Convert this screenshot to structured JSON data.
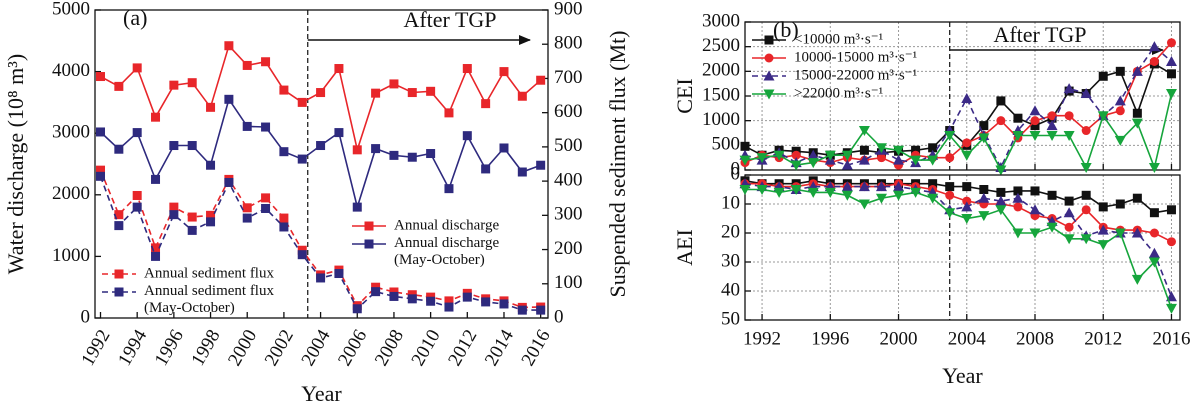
{
  "chart_data": [
    {
      "type": "line",
      "title": "(a)",
      "annotation": "After TGP",
      "divider_x": 2003.3,
      "xlabel": "Year",
      "ylabel": "Water discharge (10⁸ m³)",
      "y2label": "Suspended sediment flux (Mt)",
      "x": [
        1992,
        1993,
        1994,
        1995,
        1996,
        1997,
        1998,
        1999,
        2000,
        2001,
        2002,
        2003,
        2004,
        2005,
        2006,
        2007,
        2008,
        2009,
        2010,
        2011,
        2012,
        2013,
        2014,
        2015,
        2016
      ],
      "xlim": [
        1991.7,
        2016.4
      ],
      "xticks": [
        1992,
        1994,
        1996,
        1998,
        2000,
        2002,
        2004,
        2006,
        2008,
        2010,
        2012,
        2014,
        2016
      ],
      "ylim": [
        0,
        5000
      ],
      "yticks": [
        0,
        1000,
        2000,
        3000,
        4000,
        5000
      ],
      "y2lim": [
        0,
        900
      ],
      "y2ticks": [
        0,
        100,
        200,
        300,
        400,
        500,
        600,
        700,
        800,
        900
      ],
      "grid": false,
      "series": [
        {
          "name": "Annual discharge",
          "color": "#e8262a",
          "marker": "square",
          "dash": "solid",
          "legend_loc": "center right",
          "values": [
            3920,
            3760,
            4060,
            3260,
            3780,
            3820,
            3420,
            4420,
            4100,
            4160,
            3700,
            3500,
            3660,
            4050,
            2730,
            3650,
            3800,
            3660,
            3680,
            3330,
            4050,
            3480,
            4000,
            3600,
            3860
          ]
        },
        {
          "name": "Annual discharge (May-October)",
          "color": "#2e2a7e",
          "marker": "square",
          "dash": "solid",
          "legend_loc": "center right",
          "values": [
            3020,
            2740,
            3010,
            2250,
            2800,
            2800,
            2480,
            3550,
            3110,
            3100,
            2700,
            2580,
            2800,
            3010,
            1800,
            2750,
            2640,
            2610,
            2670,
            2100,
            2960,
            2420,
            2760,
            2370,
            2480
          ]
        },
        {
          "name": "Annual sediment flux",
          "color": "#e8262a",
          "marker": "square",
          "dash": "dashed",
          "axis": "y2",
          "legend_loc": "lower left",
          "values": [
            432,
            302,
            358,
            205,
            324,
            295,
            300,
            405,
            322,
            351,
            292,
            198,
            126,
            140,
            36,
            90,
            76,
            68,
            61,
            50,
            72,
            56,
            50,
            31,
            32
          ]
        },
        {
          "name": "Annual sediment flux (May-October)",
          "color": "#2e2a7e",
          "marker": "square",
          "dash": "dashed",
          "axis": "y2",
          "legend_loc": "lower left",
          "values": [
            414,
            270,
            324,
            180,
            302,
            256,
            281,
            396,
            292,
            320,
            266,
            185,
            117,
            130,
            27,
            77,
            63,
            56,
            49,
            32,
            61,
            47,
            41,
            23,
            23
          ]
        }
      ]
    },
    {
      "type": "line",
      "title": "(b)",
      "annotation": "After TGP",
      "divider_x": 2003,
      "ylabel": "CEI",
      "x": [
        1991,
        1992,
        1993,
        1994,
        1995,
        1996,
        1997,
        1998,
        1999,
        2000,
        2001,
        2002,
        2003,
        2004,
        2005,
        2006,
        2007,
        2008,
        2009,
        2010,
        2011,
        2012,
        2013,
        2014,
        2015,
        2016
      ],
      "xlim": [
        1991,
        2016.5
      ],
      "xticks": [
        1992,
        1996,
        2000,
        2004,
        2008,
        2012,
        2016
      ],
      "ylim": [
        0,
        3000
      ],
      "yticks": [
        0,
        500,
        1000,
        1500,
        2000,
        2500,
        3000
      ],
      "grid": true,
      "series": [
        {
          "name": "<10000 m³·s⁻¹",
          "color": "#111111",
          "marker": "square",
          "dash": "solid",
          "legend_loc": "upper left",
          "values": [
            480,
            300,
            400,
            380,
            350,
            300,
            350,
            400,
            350,
            380,
            400,
            450,
            800,
            500,
            900,
            1400,
            1050,
            900,
            1050,
            1600,
            1550,
            1900,
            2000,
            1150,
            2150,
            1950
          ]
        },
        {
          "name": "10000-15000 m³·s⁻¹",
          "color": "#e8262a",
          "marker": "circle",
          "dash": "solid",
          "legend_loc": "upper left",
          "values": [
            150,
            300,
            250,
            300,
            200,
            150,
            250,
            200,
            250,
            100,
            300,
            250,
            250,
            550,
            700,
            1000,
            650,
            1000,
            1100,
            1100,
            800,
            1100,
            1200,
            2000,
            2200,
            2580
          ]
        },
        {
          "name": "15000-22000 m³·s⁻¹",
          "color": "#3b2a86",
          "marker": "triangle-up",
          "dash": "dashed",
          "legend_loc": "upper left",
          "values": [
            300,
            200,
            350,
            150,
            300,
            200,
            100,
            200,
            400,
            200,
            150,
            300,
            800,
            1450,
            700,
            50,
            800,
            1200,
            900,
            1650,
            1550,
            1100,
            1400,
            2000,
            2500,
            2200
          ]
        },
        {
          "name": ">22000 m³·s⁻¹",
          "color": "#16a53c",
          "marker": "triangle-down",
          "dash": "solid",
          "legend_loc": "upper left",
          "values": [
            200,
            250,
            300,
            100,
            150,
            300,
            300,
            800,
            450,
            400,
            200,
            200,
            700,
            300,
            650,
            0,
            700,
            700,
            700,
            700,
            50,
            1100,
            600,
            950,
            50,
            1550
          ]
        }
      ]
    },
    {
      "type": "line",
      "divider_x": 2003,
      "xlabel": "Year",
      "ylabel": "AEI",
      "x": [
        1991,
        1992,
        1993,
        1994,
        1995,
        1996,
        1997,
        1998,
        1999,
        2000,
        2001,
        2002,
        2003,
        2004,
        2005,
        2006,
        2007,
        2008,
        2009,
        2010,
        2011,
        2012,
        2013,
        2014,
        2015,
        2016
      ],
      "xlim": [
        1991,
        2016.5
      ],
      "xticks": [
        1992,
        1996,
        2000,
        2004,
        2008,
        2012,
        2016
      ],
      "ylim": [
        0,
        50
      ],
      "yticks": [
        0,
        10,
        20,
        30,
        40,
        50
      ],
      "y_reversed": true,
      "grid": true,
      "series": [
        {
          "color": "#111111",
          "marker": "square",
          "dash": "solid",
          "values": [
            2,
            3,
            3,
            3,
            2,
            3,
            3,
            3,
            3,
            3,
            3,
            3,
            4,
            4,
            5,
            6,
            5.5,
            5.5,
            7,
            9,
            7,
            11,
            10,
            8,
            13,
            12
          ]
        },
        {
          "color": "#e8262a",
          "marker": "circle",
          "dash": "solid",
          "values": [
            3,
            3,
            4,
            4,
            3,
            4,
            4,
            4,
            4,
            3,
            4,
            5,
            7,
            9,
            10,
            10,
            11,
            14,
            15,
            18,
            12,
            18,
            19,
            19,
            20,
            23
          ]
        },
        {
          "color": "#3b2a86",
          "marker": "triangle-up",
          "dash": "dashed",
          "values": [
            3,
            4,
            4,
            5,
            4,
            4,
            4,
            4,
            4,
            4,
            5,
            6,
            12,
            11,
            8,
            9,
            8,
            12,
            16,
            13,
            21,
            19,
            20,
            20,
            27,
            42
          ]
        },
        {
          "color": "#16a53c",
          "marker": "triangle-down",
          "dash": "solid",
          "values": [
            5,
            5,
            6,
            5,
            6,
            6,
            7,
            10,
            8,
            7,
            6,
            8,
            13,
            15,
            14,
            12,
            20,
            20,
            18,
            22,
            22,
            24,
            20,
            36,
            30,
            46
          ]
        }
      ]
    }
  ]
}
